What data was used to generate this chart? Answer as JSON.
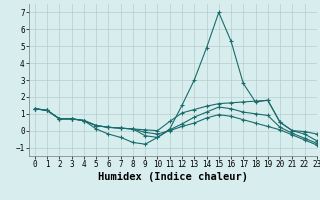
{
  "xlabel": "Humidex (Indice chaleur)",
  "ylabel": "",
  "xlim": [
    -0.5,
    23
  ],
  "ylim": [
    -1.5,
    7.5
  ],
  "xticks": [
    0,
    1,
    2,
    3,
    4,
    5,
    6,
    7,
    8,
    9,
    10,
    11,
    12,
    13,
    14,
    15,
    16,
    17,
    18,
    19,
    20,
    21,
    22,
    23
  ],
  "yticks": [
    -1,
    0,
    1,
    2,
    3,
    4,
    5,
    6,
    7
  ],
  "bg_color": "#d8eeee",
  "line_color": "#1a6b6b",
  "grid_color": "#b8cece",
  "lines": [
    {
      "x": [
        0,
        1,
        2,
        3,
        4,
        5,
        6,
        7,
        8,
        9,
        10,
        11,
        12,
        13,
        14,
        15,
        16,
        17,
        18,
        19,
        20,
        21,
        22,
        23
      ],
      "y": [
        1.3,
        1.2,
        0.7,
        0.7,
        0.6,
        0.1,
        -0.2,
        -0.4,
        -0.7,
        -0.8,
        -0.4,
        0.1,
        1.5,
        3.0,
        4.9,
        7.0,
        5.3,
        2.8,
        1.7,
        1.8,
        0.5,
        0.0,
        -0.2,
        -0.6
      ]
    },
    {
      "x": [
        0,
        1,
        2,
        3,
        4,
        5,
        6,
        7,
        8,
        9,
        10,
        11,
        12,
        13,
        14,
        15,
        16,
        17,
        18,
        19,
        20,
        21,
        22,
        23
      ],
      "y": [
        1.3,
        1.2,
        0.7,
        0.7,
        0.6,
        0.3,
        0.2,
        0.15,
        0.1,
        0.05,
        0.0,
        0.55,
        1.05,
        1.25,
        1.45,
        1.6,
        1.65,
        1.7,
        1.75,
        1.8,
        0.5,
        0.0,
        -0.05,
        -0.2
      ]
    },
    {
      "x": [
        0,
        1,
        2,
        3,
        4,
        5,
        6,
        7,
        8,
        9,
        10,
        11,
        12,
        13,
        14,
        15,
        16,
        17,
        18,
        19,
        20,
        21,
        22,
        23
      ],
      "y": [
        1.3,
        1.2,
        0.7,
        0.7,
        0.6,
        0.3,
        0.2,
        0.15,
        0.1,
        -0.3,
        -0.4,
        0.05,
        0.4,
        0.8,
        1.1,
        1.4,
        1.3,
        1.1,
        1.0,
        0.9,
        0.2,
        -0.15,
        -0.45,
        -0.75
      ]
    },
    {
      "x": [
        0,
        1,
        2,
        3,
        4,
        5,
        6,
        7,
        8,
        9,
        10,
        11,
        12,
        13,
        14,
        15,
        16,
        17,
        18,
        19,
        20,
        21,
        22,
        23
      ],
      "y": [
        1.3,
        1.2,
        0.7,
        0.7,
        0.6,
        0.3,
        0.2,
        0.15,
        0.1,
        -0.1,
        -0.2,
        0.0,
        0.25,
        0.45,
        0.75,
        0.95,
        0.85,
        0.65,
        0.45,
        0.25,
        0.05,
        -0.25,
        -0.55,
        -0.85
      ]
    }
  ],
  "tick_fontsize": 5.5,
  "label_fontsize": 7.5,
  "font_family": "monospace"
}
